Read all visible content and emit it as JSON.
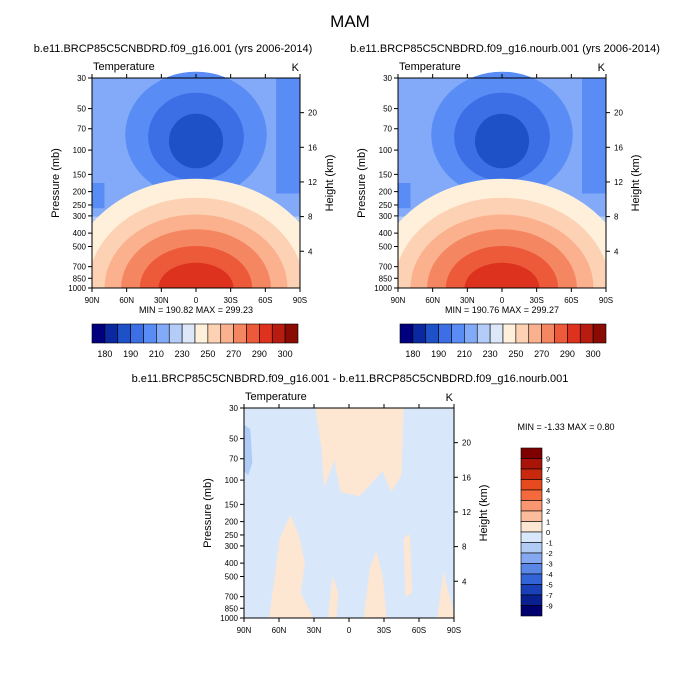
{
  "figure_title": "MAM",
  "chart_data": [
    {
      "type": "contour",
      "title": "b.e11.BRCP85C5CNBDRD.f09_g16.001 (yrs 2006-2014)",
      "left_label": "Temperature",
      "right_label": "K",
      "ylabel": "Pressure (mb)",
      "ylabel_right": "Height (km)",
      "x_ticks": [
        "90N",
        "60N",
        "30N",
        "0",
        "30S",
        "60S",
        "90S"
      ],
      "y_ticks": [
        "30",
        "50",
        "70",
        "100",
        "150",
        "200",
        "250",
        "300",
        "400",
        "500",
        "700",
        "850",
        "1000"
      ],
      "y_ticks_right": [
        "20",
        "16",
        "12",
        "8",
        "4"
      ],
      "stats": "MIN = 190.82  MAX = 299.23",
      "min": 190.82,
      "max": 299.23,
      "colorbar_labels": [
        "180",
        "190",
        "210",
        "230",
        "250",
        "270",
        "290",
        "300"
      ]
    },
    {
      "type": "contour",
      "title": "b.e11.BRCP85C5CNBDRD.f09_g16.nourb.001 (yrs 2006-2014)",
      "left_label": "Temperature",
      "right_label": "K",
      "ylabel": "Pressure (mb)",
      "ylabel_right": "Height (km)",
      "x_ticks": [
        "90N",
        "60N",
        "30N",
        "0",
        "30S",
        "60S",
        "90S"
      ],
      "y_ticks": [
        "30",
        "50",
        "70",
        "100",
        "150",
        "200",
        "250",
        "300",
        "400",
        "500",
        "700",
        "850",
        "1000"
      ],
      "y_ticks_right": [
        "20",
        "16",
        "12",
        "8",
        "4"
      ],
      "stats": "MIN = 190.76  MAX = 299.27",
      "min": 190.76,
      "max": 299.27,
      "colorbar_labels": [
        "180",
        "190",
        "210",
        "230",
        "250",
        "270",
        "290",
        "300"
      ]
    },
    {
      "type": "contour",
      "title": "b.e11.BRCP85C5CNBDRD.f09_g16.001 - b.e11.BRCP85C5CNBDRD.f09_g16.nourb.001",
      "left_label": "Temperature",
      "right_label": "K",
      "ylabel": "Pressure (mb)",
      "ylabel_right": "Height (km)",
      "x_ticks": [
        "90N",
        "60N",
        "30N",
        "0",
        "30S",
        "60S",
        "90S"
      ],
      "y_ticks": [
        "30",
        "50",
        "70",
        "100",
        "150",
        "200",
        "250",
        "300",
        "400",
        "500",
        "700",
        "850",
        "1000"
      ],
      "y_ticks_right": [
        "20",
        "16",
        "12",
        "8",
        "4"
      ],
      "stats": "MIN = -1.33  MAX =  0.80",
      "min": -1.33,
      "max": 0.8,
      "colorbar_labels": [
        "9",
        "7",
        "5",
        "4",
        "3",
        "2",
        "1",
        "0",
        "-1",
        "-2",
        "-3",
        "-4",
        "-5",
        "-7",
        "-9"
      ]
    }
  ],
  "colors": {
    "abs_bar": [
      "#00007f",
      "#0a28a0",
      "#1e50c8",
      "#3c6ee6",
      "#5a8cf5",
      "#82aaf8",
      "#b4ccf8",
      "#dce8fa",
      "#fff0dc",
      "#fdd2b4",
      "#fbb08e",
      "#f58662",
      "#ec5a3a",
      "#dc321e",
      "#b81c10",
      "#8a0a04"
    ],
    "diff_bar": [
      "#7f0000",
      "#a81408",
      "#c8280e",
      "#e64a1e",
      "#f56a3c",
      "#fa9670",
      "#fbbc9c",
      "#fde6d2",
      "#d8e8fa",
      "#b0cbf5",
      "#86a8f0",
      "#5a86e6",
      "#3264d8",
      "#1a40b8",
      "#0a2090",
      "#00006e"
    ],
    "contour": {
      "c1": "#1e50c8",
      "c2": "#3c6ee6",
      "c3": "#5a8cf5",
      "c4": "#82aaf8",
      "c5": "#b4ccf8",
      "c6": "#dce8fa",
      "c7": "#fff0dc",
      "c8": "#fdd2b4",
      "c9": "#fbb08e",
      "c10": "#f58662",
      "c11": "#ec5a3a",
      "c12": "#dc321e",
      "diff_bg": "#d8e8fa",
      "diff_pos": "#fde6d2",
      "diff_neg": "#b0cbf5"
    }
  }
}
